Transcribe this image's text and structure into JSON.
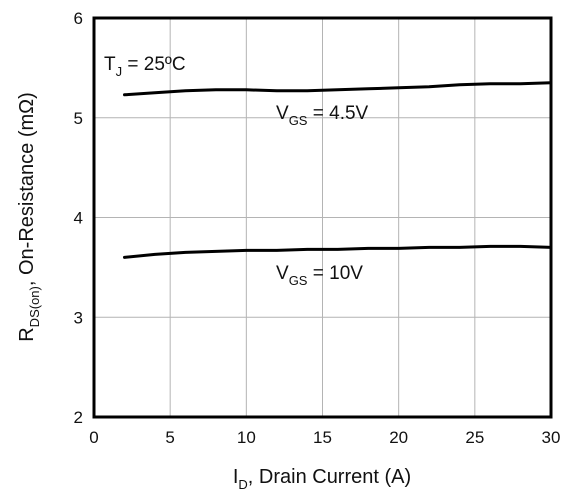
{
  "chart_data": {
    "type": "line",
    "title": "",
    "xlabel": {
      "main": "I",
      "sub": "D",
      "rest": ", Drain Current (A)"
    },
    "ylabel": {
      "main": "R",
      "sub": "DS(on)",
      "rest": ", On-Resistance (mΩ)"
    },
    "xlim": [
      0,
      30
    ],
    "ylim": [
      2,
      6
    ],
    "xticks": [
      "0",
      "5",
      "10",
      "15",
      "20",
      "25",
      "30"
    ],
    "yticks": [
      "2",
      "3",
      "4",
      "5",
      "6"
    ],
    "grid": true,
    "annotation": {
      "main": "T",
      "sub": "J",
      "rest": " = 25ºC"
    },
    "series": [
      {
        "label": {
          "main": "V",
          "sub": "GS",
          "rest": " = 4.5V"
        },
        "x": [
          2,
          4,
          6,
          8,
          10,
          12,
          14,
          16,
          18,
          20,
          22,
          24,
          26,
          28,
          30
        ],
        "y": [
          5.23,
          5.25,
          5.27,
          5.28,
          5.28,
          5.27,
          5.27,
          5.28,
          5.29,
          5.3,
          5.31,
          5.33,
          5.34,
          5.34,
          5.35
        ]
      },
      {
        "label": {
          "main": "V",
          "sub": "GS",
          "rest": " = 10V"
        },
        "x": [
          2,
          4,
          6,
          8,
          10,
          12,
          14,
          16,
          18,
          20,
          22,
          24,
          26,
          28,
          30
        ],
        "y": [
          3.6,
          3.63,
          3.65,
          3.66,
          3.67,
          3.67,
          3.68,
          3.68,
          3.69,
          3.69,
          3.7,
          3.7,
          3.71,
          3.71,
          3.7
        ]
      }
    ]
  }
}
